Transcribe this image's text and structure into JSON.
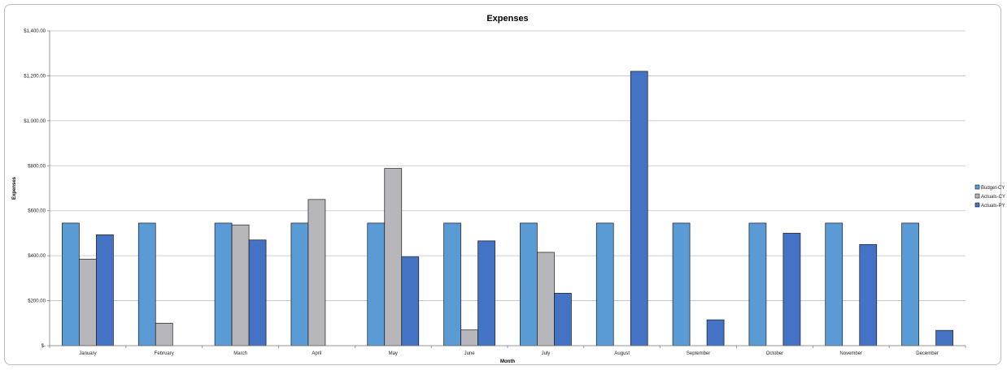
{
  "chart_data": {
    "type": "bar",
    "title": "Expenses",
    "xlabel": "Month",
    "ylabel": "Expenses",
    "ylim": [
      0,
      1400
    ],
    "yticks": [
      0,
      200,
      400,
      600,
      800,
      1000,
      1200,
      1400
    ],
    "ytick_labels": [
      "$-",
      "$200.00",
      "$400.00",
      "$600.00",
      "$800.00",
      "$1,000.00",
      "$1,200.00",
      "$1,400.00"
    ],
    "grid": true,
    "legend_position": "right",
    "categories": [
      "January",
      "February",
      "March",
      "April",
      "May",
      "June",
      "July",
      "August",
      "September",
      "October",
      "November",
      "December"
    ],
    "series": [
      {
        "name": "Budget-CY",
        "color": "#5b9bd5",
        "values": [
          545,
          545,
          545,
          545,
          545,
          545,
          545,
          545,
          545,
          545,
          545,
          545
        ]
      },
      {
        "name": "Actuals-CY",
        "color": "#b7b7bb",
        "values": [
          385,
          100,
          537,
          650,
          788,
          70,
          415,
          0,
          0,
          0,
          0,
          0
        ]
      },
      {
        "name": "Actuals-PY",
        "color": "#4472c4",
        "values": [
          493,
          0,
          470,
          0,
          395,
          466,
          233,
          1220,
          115,
          500,
          450,
          68
        ]
      }
    ]
  }
}
